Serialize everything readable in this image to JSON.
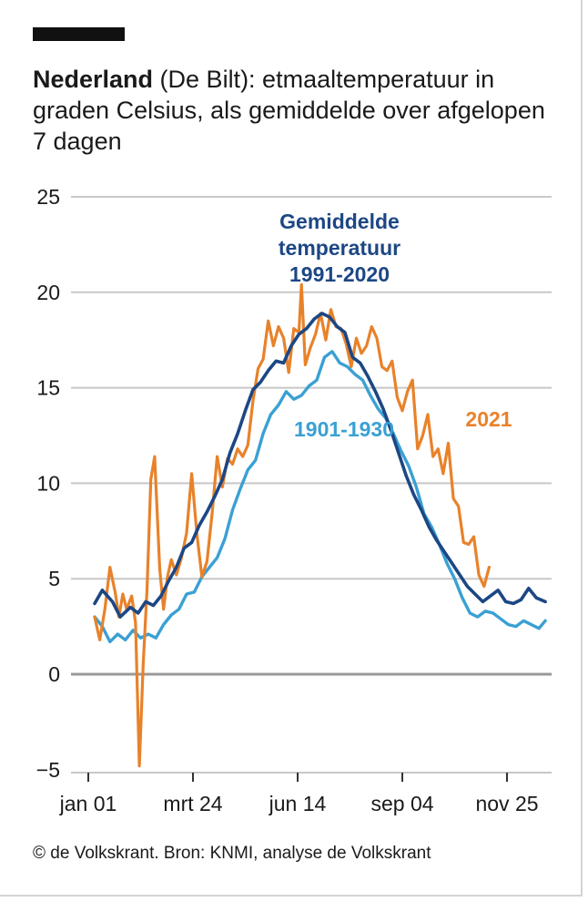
{
  "header": {
    "title_bold": "Nederland",
    "title_rest": " (De Bilt): etmaaltemperatuur in graden Celsius, als gemiddelde over afgelopen 7 dagen"
  },
  "footer": {
    "source": "© de Volkskrant. Bron: KNMI, analyse de Volkskrant"
  },
  "colors": {
    "s2021": "#E8822A",
    "s1991": "#1C4784",
    "s1901": "#3AA0D4",
    "grid": "#c8c8c8",
    "zero": "#9a9a9a"
  },
  "chart_data": {
    "type": "line",
    "title": "Nederland (De Bilt): etmaaltemperatuur in graden Celsius, als gemiddelde over afgelopen 7 dagen",
    "xlabel": "",
    "ylabel": "",
    "ylim": [
      -5,
      25
    ],
    "yticks": [
      "25",
      "20",
      "15",
      "10",
      "5",
      "0",
      "−5"
    ],
    "xticks": [
      "jan 01",
      "mrt 24",
      "jun 14",
      "sep 04",
      "nov 25"
    ],
    "xtick_days": [
      1,
      83,
      165,
      247,
      329
    ],
    "xlim": [
      1,
      365
    ],
    "grid": true,
    "legend": "inline labels",
    "series": [
      {
        "key": "s1991",
        "name": "Gemiddelde temperatuur 1991-2020",
        "label_lines": [
          "Gemiddelde",
          "temperatuur",
          "1991-2020"
        ],
        "x": [
          6,
          12,
          20,
          26,
          34,
          40,
          46,
          52,
          58,
          64,
          70,
          76,
          82,
          88,
          94,
          100,
          106,
          112,
          118,
          124,
          130,
          136,
          142,
          148,
          154,
          160,
          166,
          172,
          178,
          184,
          190,
          196,
          202,
          208,
          214,
          220,
          226,
          232,
          238,
          244,
          250,
          256,
          262,
          268,
          274,
          280,
          286,
          292,
          298,
          304,
          310,
          316,
          322,
          328,
          334,
          340,
          346,
          352,
          359
        ],
        "values": [
          3.7,
          4.4,
          3.8,
          3.0,
          3.5,
          3.2,
          3.8,
          3.6,
          4.1,
          4.9,
          5.6,
          6.6,
          6.9,
          7.8,
          8.5,
          9.3,
          10.2,
          11.6,
          12.6,
          13.8,
          14.9,
          15.3,
          15.9,
          16.4,
          16.3,
          17.2,
          17.8,
          18.1,
          18.6,
          18.9,
          18.7,
          18.2,
          17.9,
          16.6,
          16.3,
          15.6,
          14.8,
          13.9,
          12.8,
          11.6,
          10.4,
          9.4,
          8.6,
          7.7,
          7.0,
          6.4,
          5.8,
          5.2,
          4.6,
          4.2,
          3.8,
          4.1,
          4.4,
          3.8,
          3.7,
          3.9,
          4.5,
          4.0,
          3.8
        ]
      },
      {
        "key": "s1901",
        "name": "1901-1930",
        "label_lines": [
          "1901-1930"
        ],
        "x": [
          6,
          12,
          18,
          24,
          30,
          36,
          42,
          48,
          54,
          60,
          66,
          72,
          78,
          84,
          90,
          96,
          102,
          108,
          114,
          120,
          126,
          132,
          138,
          144,
          150,
          156,
          162,
          168,
          174,
          180,
          186,
          192,
          198,
          204,
          210,
          216,
          222,
          228,
          234,
          240,
          246,
          252,
          258,
          264,
          270,
          276,
          282,
          288,
          294,
          300,
          306,
          312,
          318,
          324,
          330,
          336,
          342,
          348,
          354,
          359
        ],
        "values": [
          3.0,
          2.5,
          1.7,
          2.1,
          1.8,
          2.3,
          1.9,
          2.1,
          1.9,
          2.6,
          3.1,
          3.4,
          4.2,
          4.3,
          5.1,
          5.6,
          6.1,
          7.1,
          8.6,
          9.7,
          10.7,
          11.2,
          12.6,
          13.6,
          14.1,
          14.8,
          14.4,
          14.6,
          15.1,
          15.4,
          16.6,
          16.9,
          16.3,
          16.1,
          15.7,
          15.4,
          14.6,
          13.9,
          13.4,
          12.6,
          11.7,
          10.9,
          9.8,
          8.4,
          7.7,
          6.8,
          5.8,
          5.0,
          4.0,
          3.2,
          3.0,
          3.3,
          3.2,
          2.9,
          2.6,
          2.5,
          2.8,
          2.6,
          2.4,
          2.8
        ]
      },
      {
        "key": "s2021",
        "name": "2021",
        "label_lines": [
          "2021"
        ],
        "x": [
          6,
          10,
          14,
          18,
          22,
          25,
          28,
          31,
          35,
          38,
          41,
          44,
          47,
          50,
          53,
          57,
          60,
          63,
          66,
          70,
          74,
          78,
          82,
          86,
          90,
          94,
          98,
          102,
          106,
          110,
          114,
          118,
          122,
          126,
          130,
          134,
          138,
          142,
          146,
          150,
          154,
          158,
          162,
          166,
          168,
          171,
          175,
          179,
          183,
          187,
          191,
          195,
          199,
          203,
          207,
          211,
          215,
          219,
          223,
          227,
          231,
          235,
          239,
          243,
          247,
          251,
          255,
          259,
          263,
          267,
          271,
          275,
          279,
          283,
          287,
          291,
          295,
          299,
          303,
          307,
          311,
          315
        ],
        "values": [
          3.0,
          1.8,
          3.4,
          5.6,
          4.3,
          3.0,
          4.2,
          3.4,
          4.1,
          2.7,
          -4.8,
          0.5,
          4.4,
          10.2,
          11.4,
          5.5,
          3.4,
          5.1,
          6.0,
          5.2,
          6.1,
          7.4,
          10.5,
          7.4,
          5.1,
          5.9,
          8.4,
          11.4,
          9.8,
          11.3,
          11.0,
          11.8,
          11.4,
          12.0,
          14.3,
          16.0,
          16.5,
          18.5,
          17.2,
          18.2,
          17.6,
          15.8,
          18.1,
          17.9,
          20.4,
          16.2,
          17.1,
          17.8,
          18.9,
          17.5,
          19.1,
          18.2,
          18.1,
          17.3,
          16.1,
          17.6,
          16.8,
          17.2,
          18.2,
          17.6,
          16.1,
          15.9,
          16.4,
          14.5,
          13.8,
          14.8,
          15.4,
          11.8,
          12.5,
          13.6,
          11.4,
          11.8,
          10.5,
          12.1,
          9.2,
          8.8,
          6.9,
          6.8,
          7.2,
          5.2,
          4.6,
          5.6
        ]
      }
    ]
  }
}
